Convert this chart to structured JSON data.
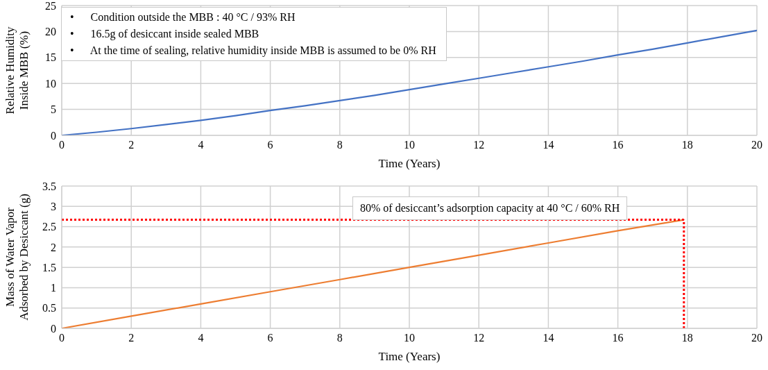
{
  "chart_data": [
    {
      "type": "line",
      "xlabel": "Time (Years)",
      "ylabel": "Relative Humidity Inside MBB (%)",
      "x": [
        0,
        1,
        2,
        3,
        4,
        5,
        6,
        7,
        8,
        9,
        10,
        11,
        12,
        13,
        14,
        15,
        16,
        17,
        18,
        19,
        20
      ],
      "series": [
        {
          "color": "#4472c4",
          "values": [
            0,
            0.6,
            1.3,
            2.1,
            2.9,
            3.8,
            4.8,
            5.7,
            6.7,
            7.7,
            8.8,
            9.9,
            11.0,
            12.1,
            13.2,
            14.3,
            15.5,
            16.6,
            17.8,
            19.0,
            20.2
          ]
        }
      ],
      "xlim": [
        0,
        20
      ],
      "xticks": [
        0,
        2,
        4,
        6,
        8,
        10,
        12,
        14,
        16,
        18,
        20
      ],
      "ylim": [
        0,
        25
      ],
      "yticks": [
        0,
        5,
        10,
        15,
        20,
        25
      ],
      "grid": true,
      "marker": "none",
      "annotations": [
        "•      Condition outside the MBB : 40 °C / 93% RH",
        "•      16.5g of desiccant inside sealed MBB",
        "•      At the time of sealing, relative humidity inside MBB is assumed to be 0% RH"
      ]
    },
    {
      "type": "line",
      "xlabel": "Time (Years)",
      "ylabel": "Mass of Water Vapor Adsorbed by Desiccant (g)",
      "x": [
        0,
        2,
        4,
        6,
        8,
        10,
        12,
        14,
        16,
        17.9
      ],
      "series": [
        {
          "color": "#ed7d31",
          "values": [
            0,
            0.3,
            0.6,
            0.9,
            1.2,
            1.5,
            1.8,
            2.1,
            2.4,
            2.67
          ]
        }
      ],
      "xlim": [
        0,
        20
      ],
      "xticks": [
        0,
        2,
        4,
        6,
        8,
        10,
        12,
        14,
        16,
        18,
        20
      ],
      "ylim": [
        0,
        3.5
      ],
      "yticks": [
        0,
        0.5,
        1,
        1.5,
        2,
        2.5,
        3,
        3.5
      ],
      "grid": true,
      "marker": "none",
      "ref_lines": [
        {
          "axis": "y",
          "value": 2.67,
          "color": "#ff0000",
          "line_style": "dotted"
        },
        {
          "axis": "x",
          "value": 17.9,
          "color": "#ff0000",
          "line_style": "dotted"
        }
      ],
      "annotations": [
        "80% of desiccant’s adsorption capacity at 40 °C / 60% RH"
      ]
    }
  ]
}
